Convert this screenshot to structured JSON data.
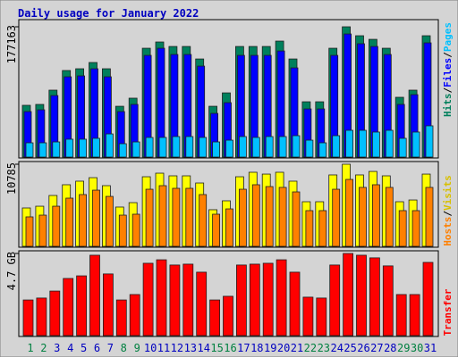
{
  "chart_data": {
    "type": "bar",
    "title": "Daily usage for January 2022",
    "categories": [
      "1",
      "2",
      "3",
      "4",
      "5",
      "6",
      "7",
      "8",
      "9",
      "10",
      "11",
      "12",
      "13",
      "14",
      "15",
      "16",
      "17",
      "18",
      "19",
      "20",
      "21",
      "22",
      "23",
      "24",
      "25",
      "26",
      "27",
      "28",
      "29",
      "30",
      "31"
    ],
    "category_colors": [
      "#008040",
      "#008040",
      "#0000c0",
      "#0000c0",
      "#0000c0",
      "#0000c0",
      "#0000c0",
      "#008040",
      "#008040",
      "#0000c0",
      "#0000c0",
      "#0000c0",
      "#0000c0",
      "#0000c0",
      "#008040",
      "#008040",
      "#0000c0",
      "#0000c0",
      "#0000c0",
      "#0000c0",
      "#0000c0",
      "#008040",
      "#008040",
      "#0000c0",
      "#0000c0",
      "#0000c0",
      "#0000c0",
      "#0000c0",
      "#008040",
      "#008040",
      "#0000c0"
    ],
    "separator": "/",
    "panels": [
      {
        "ylim": [
          0,
          177163
        ],
        "yticks": [
          177163
        ],
        "series": [
          {
            "name": "Hits",
            "color": "#00805c",
            "values": [
              70400,
              71600,
              91000,
              117700,
              120100,
              128600,
              120100,
              69100,
              80100,
              148000,
              156500,
              150400,
              150400,
              133400,
              69100,
              87300,
              150400,
              150400,
              150400,
              157700,
              133400,
              75200,
              75200,
              148000,
              177163,
              165000,
              160100,
              148000,
              81300,
              91000,
              165000
            ]
          },
          {
            "name": "Files",
            "color": "#0000ff",
            "values": [
              61900,
              64300,
              83700,
              109200,
              110400,
              120100,
              109200,
              61900,
              71600,
              138300,
              148000,
              139500,
              139500,
              123700,
              59400,
              74000,
              138300,
              138300,
              138300,
              144300,
              121300,
              65500,
              65500,
              138300,
              167400,
              154100,
              150400,
              139500,
              71600,
              84900,
              155300
            ]
          },
          {
            "name": "Pages",
            "color": "#00c0ff",
            "values": [
              19400,
              19400,
              20600,
              24300,
              24300,
              25500,
              31500,
              18200,
              20600,
              26700,
              26700,
              27900,
              27900,
              26700,
              20600,
              23000,
              27900,
              26700,
              27900,
              27900,
              29100,
              23000,
              19400,
              29100,
              36400,
              36400,
              34000,
              36400,
              25500,
              34000,
              42500
            ]
          }
        ]
      },
      {
        "ylim": [
          0,
          10785
        ],
        "yticks": [
          10785
        ],
        "series": [
          {
            "name": "Hosts",
            "color": "#ff8000",
            "values": [
              3870,
              4100,
              5270,
              6330,
              6800,
              7380,
              6560,
              4100,
              4220,
              7500,
              7970,
              7620,
              7620,
              6800,
              4220,
              4920,
              7500,
              8090,
              7850,
              7740,
              7150,
              4690,
              4690,
              7500,
              8790,
              7740,
              8090,
              7740,
              4690,
              4690,
              7740
            ]
          },
          {
            "name": "Visits",
            "color": "#ffff00",
            "values": [
              5040,
              5270,
              6680,
              8090,
              8560,
              9020,
              7970,
              5160,
              5740,
              9140,
              9610,
              9260,
              9260,
              8320,
              4810,
              5980,
              9140,
              9730,
              9490,
              9730,
              8560,
              5860,
              5860,
              9380,
              10785,
              9380,
              9840,
              9260,
              5860,
              6090,
              9490
            ]
          }
        ]
      },
      {
        "ylim": [
          0,
          4.7
        ],
        "yticks": [
          {
            "value": 4.7,
            "label": "4.7 GB"
          }
        ],
        "series": [
          {
            "name": "Transfer",
            "color": "#ff0000",
            "values": [
              2.04,
              2.15,
              2.55,
              3.27,
              3.42,
              4.6,
              3.53,
              2.04,
              2.35,
              4.14,
              4.34,
              4.04,
              4.09,
              3.63,
              2.04,
              2.25,
              4.04,
              4.09,
              4.14,
              4.34,
              3.63,
              2.2,
              2.15,
              4.04,
              4.7,
              4.6,
              4.45,
              3.99,
              2.35,
              2.35,
              4.19
            ]
          }
        ]
      }
    ]
  }
}
